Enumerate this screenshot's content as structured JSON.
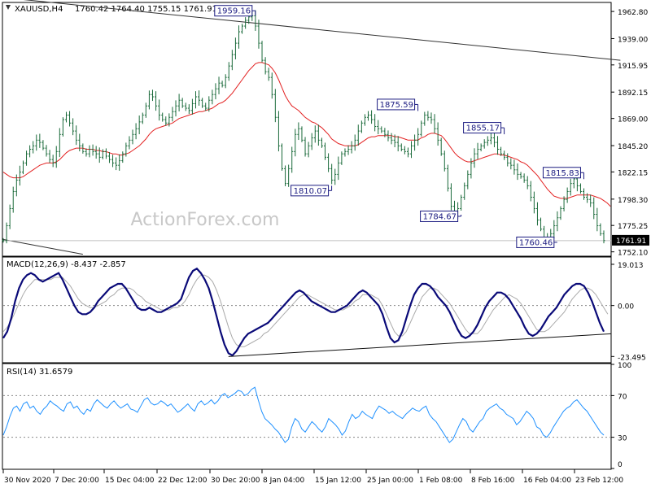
{
  "header": {
    "symbol_label": "XAUUSD,H4",
    "ohlc": "1760.42 1764.40 1755.15 1761.91"
  },
  "watermark": "ActionForex.com",
  "chart_data": [
    {
      "type": "candlestick",
      "panel": "price",
      "ylim": [
        1749,
        1970
      ],
      "y_ticks": [
        "1962.80",
        "1939.00",
        "1915.95",
        "1892.15",
        "1869.00",
        "1845.20",
        "1822.15",
        "1798.30",
        "1775.25",
        "1752.10"
      ],
      "y_tick_values": [
        1962.8,
        1939.0,
        1915.95,
        1892.15,
        1869.0,
        1845.2,
        1822.15,
        1798.3,
        1775.25,
        1752.1
      ],
      "last_price": "1761.91",
      "last_price_value": 1761.91,
      "close_series": [
        1762,
        1775,
        1790,
        1805,
        1815,
        1822,
        1830,
        1838,
        1842,
        1845,
        1850,
        1848,
        1843,
        1838,
        1833,
        1830,
        1840,
        1855,
        1868,
        1872,
        1865,
        1858,
        1850,
        1845,
        1840,
        1838,
        1842,
        1840,
        1838,
        1835,
        1840,
        1836,
        1833,
        1830,
        1828,
        1832,
        1838,
        1845,
        1850,
        1855,
        1860,
        1866,
        1872,
        1880,
        1890,
        1888,
        1880,
        1872,
        1868,
        1865,
        1870,
        1875,
        1880,
        1885,
        1880,
        1878,
        1876,
        1882,
        1888,
        1885,
        1880,
        1878,
        1885,
        1890,
        1895,
        1900,
        1898,
        1905,
        1915,
        1925,
        1935,
        1945,
        1950,
        1955,
        1958,
        1959,
        1950,
        1935,
        1920,
        1910,
        1905,
        1890,
        1870,
        1845,
        1825,
        1812,
        1825,
        1840,
        1855,
        1860,
        1850,
        1838,
        1845,
        1852,
        1858,
        1850,
        1845,
        1835,
        1825,
        1815,
        1820,
        1830,
        1838,
        1840,
        1842,
        1845,
        1850,
        1858,
        1865,
        1870,
        1872,
        1868,
        1862,
        1860,
        1858,
        1855,
        1852,
        1850,
        1848,
        1845,
        1842,
        1840,
        1838,
        1845,
        1850,
        1855,
        1865,
        1872,
        1870,
        1868,
        1860,
        1850,
        1838,
        1825,
        1808,
        1792,
        1786,
        1790,
        1800,
        1810,
        1820,
        1830,
        1838,
        1842,
        1845,
        1848,
        1850,
        1852,
        1848,
        1842,
        1838,
        1835,
        1830,
        1828,
        1824,
        1820,
        1818,
        1815,
        1810,
        1800,
        1790,
        1780,
        1772,
        1765,
        1762,
        1768,
        1775,
        1782,
        1790,
        1798,
        1805,
        1812,
        1816,
        1810,
        1805,
        1800,
        1798,
        1795,
        1785,
        1775,
        1768,
        1762
      ],
      "ema_series": [
        1822,
        1820,
        1818,
        1817,
        1817,
        1817,
        1818,
        1820,
        1822,
        1824,
        1826,
        1828,
        1829,
        1830,
        1830,
        1830,
        1831,
        1833,
        1836,
        1839,
        1841,
        1842,
        1843,
        1843,
        1843,
        1842,
        1842,
        1842,
        1841,
        1841,
        1840,
        1840,
        1839,
        1838,
        1838,
        1837,
        1837,
        1838,
        1839,
        1841,
        1843,
        1845,
        1848,
        1851,
        1855,
        1858,
        1860,
        1861,
        1862,
        1863,
        1864,
        1865,
        1867,
        1869,
        1870,
        1871,
        1872,
        1873,
        1874,
        1875,
        1875,
        1876,
        1877,
        1878,
        1880,
        1882,
        1883,
        1885,
        1888,
        1891,
        1895,
        1899,
        1903,
        1907,
        1911,
        1914,
        1917,
        1918,
        1918,
        1917,
        1916,
        1913,
        1909,
        1903,
        1896,
        1889,
        1884,
        1880,
        1878,
        1876,
        1873,
        1870,
        1868,
        1866,
        1865,
        1863,
        1861,
        1858,
        1855,
        1851,
        1849,
        1847,
        1846,
        1845,
        1845,
        1845,
        1845,
        1846,
        1848,
        1850,
        1852,
        1853,
        1853,
        1854,
        1854,
        1854,
        1854,
        1854,
        1853,
        1853,
        1852,
        1851,
        1850,
        1850,
        1850,
        1850,
        1852,
        1853,
        1855,
        1856,
        1856,
        1855,
        1854,
        1851,
        1847,
        1843,
        1839,
        1836,
        1834,
        1832,
        1831,
        1831,
        1832,
        1833,
        1834,
        1835,
        1836,
        1837,
        1838,
        1838,
        1837,
        1837,
        1836,
        1835,
        1834,
        1833,
        1831,
        1830,
        1828,
        1825,
        1822,
        1819,
        1815,
        1811,
        1807,
        1804,
        1801,
        1800,
        1799,
        1799,
        1799,
        1800,
        1801,
        1802,
        1802,
        1802,
        1802,
        1802,
        1801,
        1800,
        1799,
        1797,
        1795,
        1792
      ],
      "trendlines": [
        {
          "name": "upper",
          "points": [
            [
              0,
              1975
            ],
            [
              186,
              1920
            ]
          ]
        },
        {
          "name": "lower",
          "points": [
            [
              0,
              1763
            ],
            [
              24,
              1750
            ]
          ]
        }
      ],
      "annotations": [
        {
          "text": "1959.16",
          "value": 1959.16,
          "index": 75
        },
        {
          "text": "1875.59",
          "value": 1875.59,
          "index": 124
        },
        {
          "text": "1855.17",
          "value": 1855.17,
          "index": 150
        },
        {
          "text": "1810.07",
          "value": 1810.07,
          "index": 98
        },
        {
          "text": "1784.67",
          "value": 1784.67,
          "index": 137
        },
        {
          "text": "1815.83",
          "value": 1815.83,
          "index": 174
        },
        {
          "text": "1760.46",
          "value": 1760.46,
          "index": 166
        }
      ]
    },
    {
      "type": "line",
      "panel": "macd",
      "title": "MACD(12,26,9) -8.437 -2.857",
      "ylim": [
        -26,
        22
      ],
      "y_ticks": [
        "19.013",
        "0.00",
        "-23.495"
      ],
      "y_tick_values": [
        19.013,
        0.0,
        -23.495
      ],
      "macd_series": [
        -15,
        -12,
        -6,
        2,
        8,
        12,
        14,
        15,
        14,
        12,
        11,
        12,
        13,
        14,
        15,
        12,
        8,
        4,
        0,
        -3,
        -4,
        -4,
        -3,
        -1,
        2,
        4,
        6,
        8,
        9,
        10,
        10,
        8,
        5,
        2,
        -1,
        -2,
        -2,
        -1,
        -2,
        -3,
        -3,
        -2,
        -1,
        0,
        1,
        3,
        8,
        13,
        16,
        17,
        15,
        12,
        8,
        2,
        -5,
        -12,
        -18,
        -22,
        -23,
        -21,
        -18,
        -15,
        -13,
        -12,
        -11,
        -10,
        -9,
        -8,
        -6,
        -4,
        -2,
        0,
        2,
        4,
        6,
        7,
        6,
        4,
        2,
        1,
        0,
        -1,
        -2,
        -3,
        -3,
        -2,
        -1,
        0,
        2,
        4,
        6,
        7,
        6,
        4,
        2,
        0,
        -4,
        -10,
        -15,
        -17,
        -16,
        -12,
        -6,
        0,
        5,
        8,
        10,
        10,
        9,
        7,
        4,
        2,
        0,
        -3,
        -7,
        -11,
        -14,
        -15,
        -14,
        -12,
        -9,
        -5,
        -1,
        2,
        4,
        6,
        6,
        5,
        3,
        0,
        -3,
        -6,
        -10,
        -13,
        -14,
        -13,
        -11,
        -8,
        -5,
        -3,
        -1,
        2,
        5,
        7,
        9,
        10,
        10,
        9,
        6,
        2,
        -3,
        -8,
        -12
      ],
      "signal_series": [
        -12,
        -10,
        -7,
        -3,
        1,
        5,
        8,
        10,
        12,
        12,
        12,
        12,
        12,
        13,
        13,
        13,
        11,
        9,
        6,
        3,
        1,
        0,
        -1,
        -1,
        0,
        1,
        2,
        4,
        5,
        7,
        8,
        8,
        8,
        7,
        5,
        4,
        2,
        1,
        0,
        -1,
        -2,
        -2,
        -2,
        -1,
        -1,
        0,
        2,
        5,
        9,
        12,
        14,
        14,
        13,
        11,
        7,
        2,
        -4,
        -10,
        -15,
        -18,
        -19,
        -19,
        -18,
        -17,
        -16,
        -15,
        -13,
        -12,
        -10,
        -8,
        -6,
        -4,
        -2,
        0,
        2,
        4,
        5,
        5,
        4,
        3,
        2,
        1,
        0,
        -1,
        -2,
        -2,
        -2,
        -1,
        0,
        2,
        3,
        5,
        5,
        5,
        4,
        3,
        0,
        -4,
        -8,
        -12,
        -14,
        -14,
        -12,
        -8,
        -4,
        0,
        4,
        6,
        8,
        8,
        7,
        5,
        3,
        1,
        -2,
        -5,
        -8,
        -11,
        -13,
        -13,
        -13,
        -11,
        -8,
        -5,
        -2,
        0,
        2,
        4,
        5,
        4,
        3,
        1,
        -2,
        -5,
        -8,
        -11,
        -12,
        -12,
        -11,
        -9,
        -7,
        -5,
        -3,
        0,
        3,
        5,
        7,
        8,
        8,
        7,
        5,
        2,
        -1,
        -4
      ],
      "trendline": {
        "points": [
          [
            0,
            -23.5
          ],
          [
            148,
            -13.0
          ]
        ],
        "start_index": 8
      }
    },
    {
      "type": "line",
      "panel": "rsi",
      "title": "RSI(14) 31.6579",
      "ylim": [
        0,
        100
      ],
      "y_ticks": [
        "100",
        "70",
        "30",
        "0"
      ],
      "y_tick_values": [
        100,
        70,
        30,
        0
      ],
      "levels": [
        70,
        30
      ],
      "rsi_series": [
        32,
        40,
        50,
        58,
        60,
        55,
        62,
        64,
        58,
        60,
        55,
        52,
        57,
        60,
        65,
        62,
        60,
        57,
        55,
        62,
        64,
        58,
        60,
        55,
        52,
        57,
        55,
        62,
        66,
        63,
        60,
        58,
        62,
        65,
        61,
        58,
        60,
        62,
        57,
        56,
        54,
        60,
        66,
        68,
        63,
        61,
        62,
        65,
        63,
        60,
        62,
        58,
        54,
        56,
        59,
        62,
        58,
        55,
        62,
        65,
        61,
        63,
        66,
        62,
        65,
        70,
        72,
        68,
        70,
        72,
        75,
        74,
        70,
        72,
        76,
        78,
        66,
        55,
        48,
        45,
        42,
        38,
        35,
        30,
        25,
        28,
        40,
        48,
        45,
        38,
        35,
        40,
        45,
        42,
        38,
        35,
        40,
        48,
        45,
        42,
        38,
        32,
        36,
        45,
        52,
        48,
        50,
        55,
        52,
        50,
        48,
        55,
        60,
        58,
        56,
        53,
        55,
        52,
        50,
        48,
        52,
        55,
        58,
        56,
        55,
        58,
        60,
        52,
        48,
        45,
        40,
        35,
        30,
        25,
        28,
        35,
        42,
        48,
        45,
        38,
        35,
        40,
        45,
        48,
        55,
        58,
        60,
        62,
        58,
        56,
        52,
        50,
        48,
        42,
        45,
        50,
        55,
        52,
        48,
        40,
        38,
        32,
        30,
        34,
        40,
        45,
        50,
        55,
        58,
        60,
        64,
        66,
        62,
        58,
        55,
        50,
        45,
        40,
        35,
        32
      ],
      "x_ticks": [
        "30 Nov 2020",
        "7 Dec 20:00",
        "15 Dec 04:00",
        "22 Dec 12:00",
        "30 Dec 20:00",
        "8 Jan 04:00",
        "15 Jan 12:00",
        "25 Jan 00:00",
        "1 Feb 08:00",
        "8 Feb 16:00",
        "16 Feb 04:00",
        "23 Feb 12:00"
      ]
    }
  ]
}
